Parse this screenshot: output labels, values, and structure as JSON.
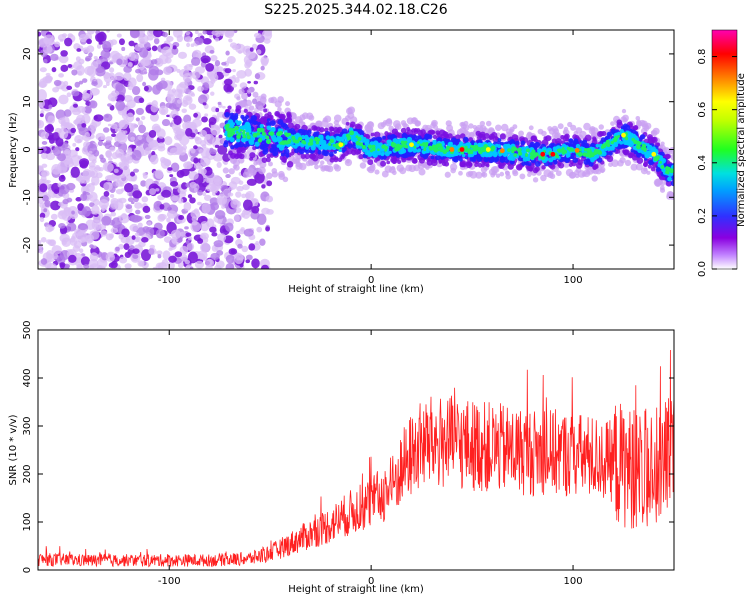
{
  "chart_data": [
    {
      "type": "heatmap",
      "title": "S225.2025.344.02.18.C26",
      "xlabel": "Height of straight line (km)",
      "ylabel": "Frequency (Hz)",
      "xlim": [
        -165,
        150
      ],
      "ylim": [
        -25,
        25
      ],
      "xticks": [
        -100,
        0,
        100
      ],
      "yticks": [
        -20,
        -10,
        0,
        10,
        20
      ],
      "grid": false,
      "colorbar": {
        "label": "Normalized spectral amplitude",
        "range": [
          0.0,
          0.9
        ],
        "ticks": [
          0.0,
          0.2,
          0.4,
          0.6,
          0.8
        ],
        "colormap": [
          "#ffffff",
          "#8a00e0",
          "#3030ff",
          "#00d0ff",
          "#20ff20",
          "#ffff00",
          "#ff8000",
          "#ff0000",
          "#ff00a0"
        ]
      },
      "description_points": {
        "noise_region_x": [
          -165,
          -50
        ],
        "ridge_x": [
          -40,
          150
        ],
        "ridge_center_freq": [
          {
            "x": -70,
            "y": 4
          },
          {
            "x": -40,
            "y": 2
          },
          {
            "x": -15,
            "y": 1
          },
          {
            "x": -10,
            "y": 3
          },
          {
            "x": 0,
            "y": 0
          },
          {
            "x": 20,
            "y": 1
          },
          {
            "x": 40,
            "y": 0
          },
          {
            "x": 60,
            "y": 0
          },
          {
            "x": 80,
            "y": -1
          },
          {
            "x": 90,
            "y": -1
          },
          {
            "x": 100,
            "y": 0
          },
          {
            "x": 110,
            "y": -1
          },
          {
            "x": 125,
            "y": 3
          },
          {
            "x": 140,
            "y": -1
          },
          {
            "x": 148,
            "y": -5
          }
        ]
      }
    },
    {
      "type": "line",
      "title": "",
      "xlabel": "Height of straight line (km)",
      "ylabel": "SNR (10 * v/v)",
      "xlim": [
        -165,
        150
      ],
      "ylim": [
        0,
        500
      ],
      "xticks": [
        -100,
        0,
        100
      ],
      "yticks": [
        0,
        100,
        200,
        300,
        400,
        500
      ],
      "grid": false,
      "color": "#ff2020",
      "series": [
        {
          "name": "SNR",
          "x": [
            -165,
            -140,
            -120,
            -100,
            -80,
            -60,
            -50,
            -40,
            -30,
            -20,
            -10,
            0,
            10,
            15,
            20,
            25,
            30,
            40,
            50,
            60,
            70,
            80,
            90,
            100,
            110,
            120,
            130,
            140,
            150
          ],
          "values": [
            22,
            20,
            20,
            20,
            20,
            24,
            35,
            55,
            75,
            95,
            120,
            140,
            170,
            210,
            240,
            260,
            265,
            265,
            260,
            255,
            250,
            245,
            245,
            240,
            235,
            225,
            210,
            210,
            230
          ]
        }
      ]
    }
  ]
}
